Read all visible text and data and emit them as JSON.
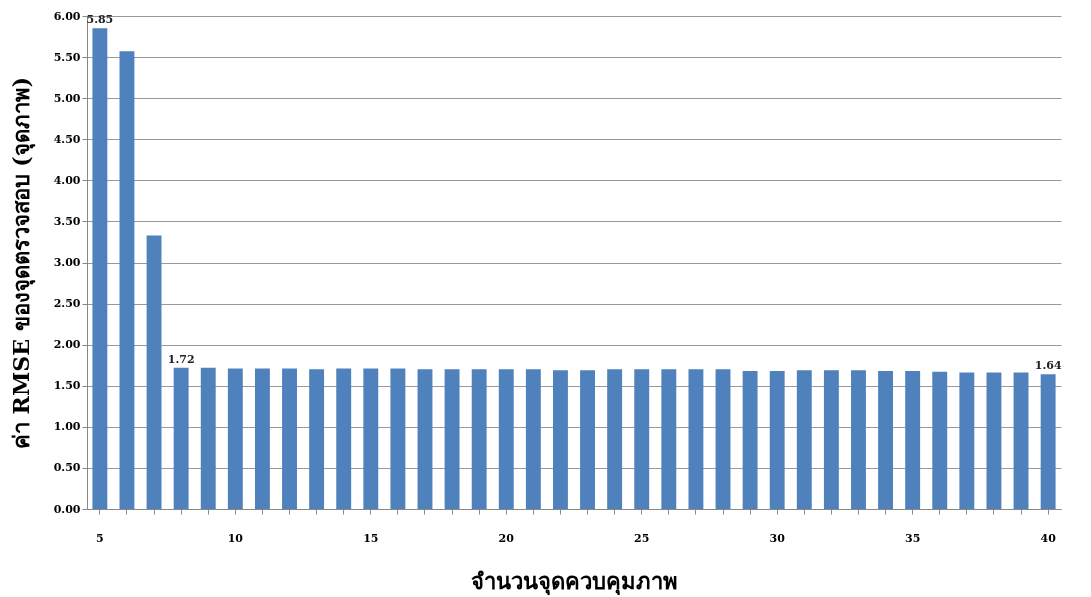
{
  "chart_data": {
    "type": "bar",
    "ylabel": "ค่า RMSE ของจุดตรวจสอบ (จุดภาพ)",
    "xlabel": "จำนวนจุดควบคุมภาพ",
    "categories": [
      "5",
      null,
      null,
      null,
      null,
      "10",
      null,
      null,
      null,
      null,
      "15",
      null,
      null,
      null,
      null,
      "20",
      null,
      null,
      null,
      null,
      "25",
      null,
      null,
      null,
      null,
      "30",
      null,
      null,
      null,
      null,
      "35",
      null,
      null,
      null,
      null,
      "40"
    ],
    "values": [
      5.85,
      5.57,
      3.33,
      1.72,
      1.72,
      1.71,
      1.71,
      1.71,
      1.7,
      1.71,
      1.71,
      1.71,
      1.7,
      1.7,
      1.7,
      1.7,
      1.7,
      1.69,
      1.69,
      1.7,
      1.7,
      1.7,
      1.7,
      1.7,
      1.68,
      1.68,
      1.69,
      1.69,
      1.69,
      1.68,
      1.68,
      1.67,
      1.66,
      1.66,
      1.66,
      1.64
    ],
    "value_labels": [
      "5.85",
      null,
      null,
      "1.72",
      null,
      null,
      null,
      null,
      null,
      null,
      null,
      null,
      null,
      null,
      null,
      null,
      null,
      null,
      null,
      null,
      null,
      null,
      null,
      null,
      null,
      null,
      null,
      null,
      null,
      null,
      null,
      null,
      null,
      null,
      null,
      "1.64"
    ],
    "color": "#4f81bd",
    "ylim": [
      0,
      6
    ],
    "yticks": [
      {
        "value": 0,
        "label": "0.00"
      },
      {
        "value": 0.5,
        "label": "0.50"
      },
      {
        "value": 1,
        "label": "1.00"
      },
      {
        "value": 1.5,
        "label": "1.50"
      },
      {
        "value": 2,
        "label": "2.00"
      },
      {
        "value": 2.5,
        "label": "2.50"
      },
      {
        "value": 3,
        "label": "3.00"
      },
      {
        "value": 3.5,
        "label": "3.50"
      },
      {
        "value": 4,
        "label": "4.00"
      },
      {
        "value": 4.5,
        "label": "4.50"
      },
      {
        "value": 5,
        "label": "5.00"
      },
      {
        "value": 5.5,
        "label": "5.50"
      },
      {
        "value": 6,
        "label": "6.00"
      }
    ],
    "grid": "y"
  }
}
